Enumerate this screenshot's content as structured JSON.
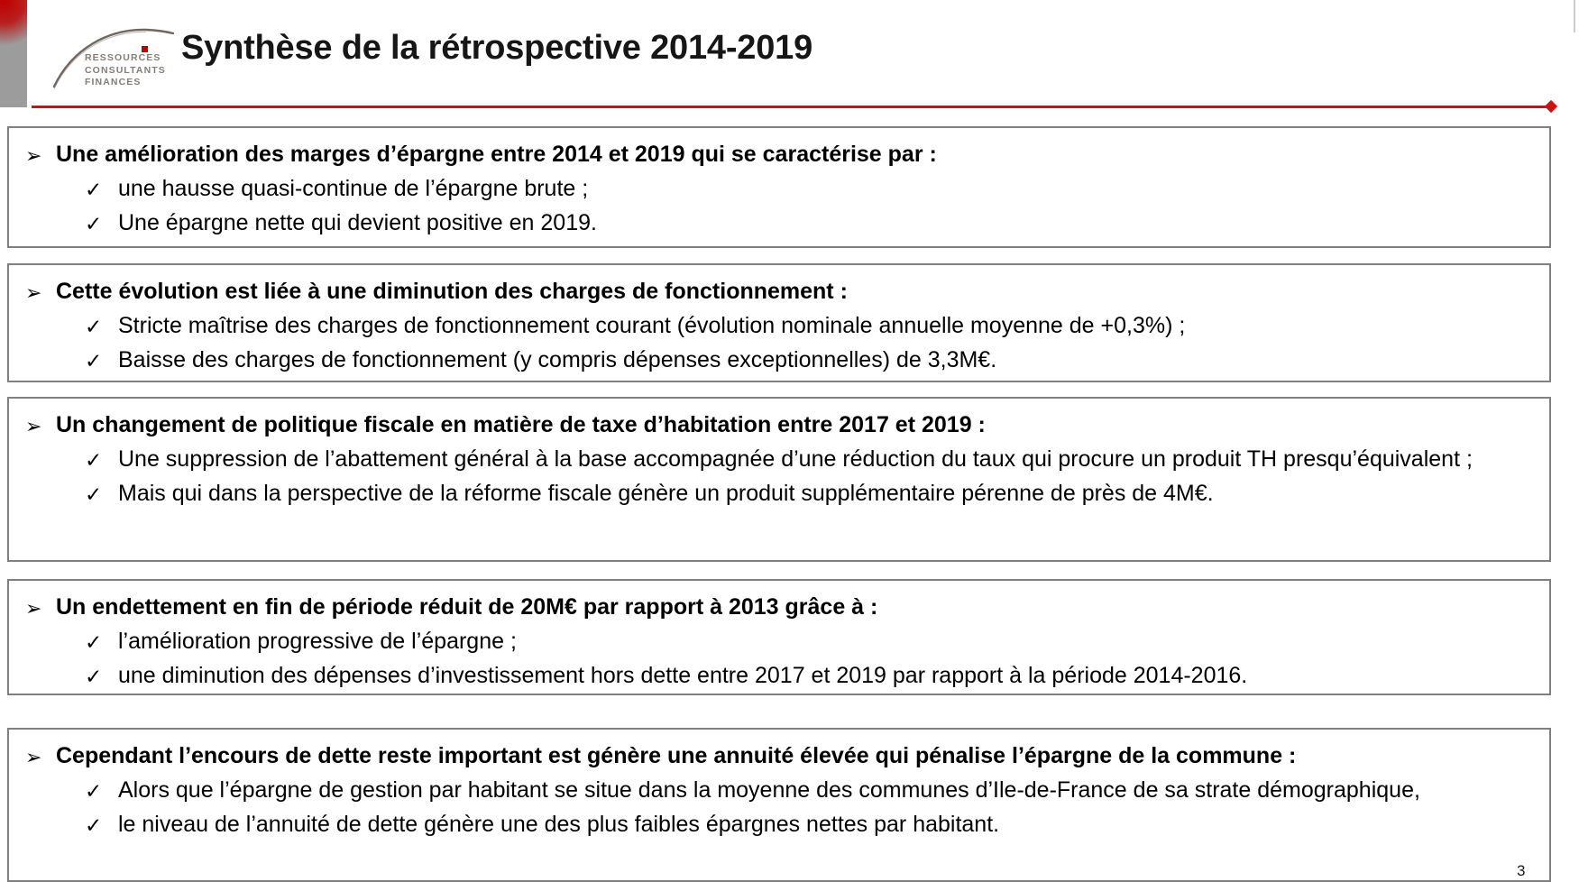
{
  "logo": {
    "lines": [
      "RESSOURCES",
      "CONSULTANTS",
      "FINANCES"
    ]
  },
  "header": {
    "title": "Synthèse de la rétrospective 2014-2019"
  },
  "glyphs": {
    "arrow": "➢",
    "check": "✓"
  },
  "sections": [
    {
      "heading": "Une amélioration des marges d’épargne entre 2014 et 2019 qui se caractérise par :",
      "bullets": [
        "une hausse quasi-continue de l’épargne brute ;",
        "Une épargne nette qui devient positive en 2019."
      ]
    },
    {
      "heading": "Cette évolution est liée à une diminution des charges de fonctionnement :",
      "bullets": [
        "Stricte maîtrise des charges de fonctionnement courant (évolution nominale annuelle moyenne de +0,3%) ;",
        "Baisse des charges de fonctionnement (y compris dépenses exceptionnelles) de 3,3M€."
      ]
    },
    {
      "heading": "Un changement de politique fiscale en matière de taxe d’habitation entre 2017 et 2019 :",
      "bullets": [
        "Une suppression de l’abattement général à la base accompagnée d’une réduction du taux qui procure un produit TH presqu’équivalent ;",
        "Mais qui dans la perspective de la réforme fiscale génère un produit supplémentaire pérenne de près de 4M€."
      ]
    },
    {
      "heading": "Un endettement en fin de période réduit de 20M€ par rapport à 2013 grâce à :",
      "bullets": [
        "l’amélioration progressive de l’épargne ;",
        "une diminution des dépenses d’investissement hors dette entre 2017 et 2019 par rapport à la période 2014-2016."
      ]
    },
    {
      "heading": "Cependant l’encours de dette reste important est génère une annuité élevée qui pénalise l’épargne de la commune :",
      "bullets": [
        "Alors que l’épargne de gestion par habitant se situe dans la moyenne des communes d’Ile-de-France de sa strate démographique,",
        "le niveau de l’annuité de dette génère une des plus faibles épargnes nettes par habitant."
      ]
    }
  ],
  "page_number": "3",
  "colors": {
    "accent_red": "#C00000",
    "rule_red": "#CD1010",
    "border_gray": "#7F7F7F",
    "sidebar_gray": "#9C9C9C"
  }
}
